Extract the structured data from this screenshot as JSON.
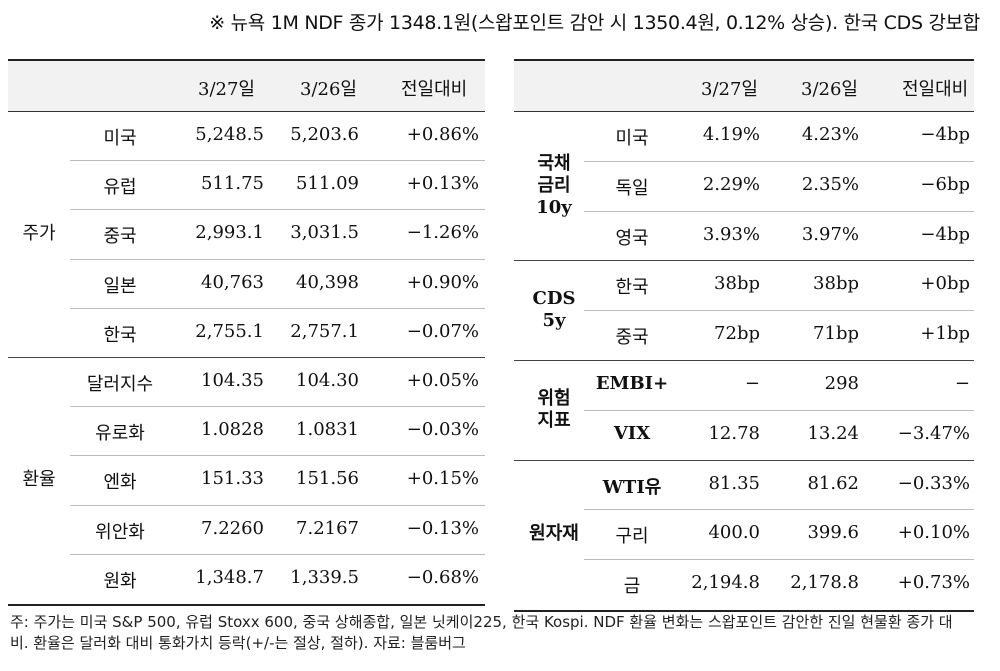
{
  "title": "※ 뉴욕 1M NDF 종가 1348.1원(스왑포인트 감안 시 1350.4원, 0.12% 상승). 한국 CDS 강보합",
  "left": {
    "headers": [
      "3/27일",
      "3/26일",
      "전일대비"
    ],
    "groups": [
      {
        "name": "주가",
        "rows": [
          {
            "label": "미국",
            "d1": "5,248.5",
            "d2": "5,203.6",
            "chg": "+0.86%"
          },
          {
            "label": "유럽",
            "d1": "511.75",
            "d2": "511.09",
            "chg": "+0.13%"
          },
          {
            "label": "중국",
            "d1": "2,993.1",
            "d2": "3,031.5",
            "chg": "−1.26%"
          },
          {
            "label": "일본",
            "d1": "40,763",
            "d2": "40,398",
            "chg": "+0.90%"
          },
          {
            "label": "한국",
            "d1": "2,755.1",
            "d2": "2,757.1",
            "chg": "−0.07%"
          }
        ]
      },
      {
        "name": "환율",
        "rows": [
          {
            "label": "달러지수",
            "d1": "104.35",
            "d2": "104.30",
            "chg": "+0.05%"
          },
          {
            "label": "유로화",
            "d1": "1.0828",
            "d2": "1.0831",
            "chg": "−0.03%"
          },
          {
            "label": "엔화",
            "d1": "151.33",
            "d2": "151.56",
            "chg": "+0.15%"
          },
          {
            "label": "위안화",
            "d1": "7.2260",
            "d2": "7.2167",
            "chg": "−0.13%"
          },
          {
            "label": "원화",
            "d1": "1,348.7",
            "d2": "1,339.5",
            "chg": "−0.68%"
          }
        ]
      }
    ]
  },
  "right": {
    "headers": [
      "3/27일",
      "3/26일",
      "전일대비"
    ],
    "groups": [
      {
        "name_lines": [
          "국채",
          "금리",
          "10y"
        ],
        "rows": [
          {
            "label": "미국",
            "d1": "4.19%",
            "d2": "4.23%",
            "chg": "−4bp"
          },
          {
            "label": "독일",
            "d1": "2.29%",
            "d2": "2.35%",
            "chg": "−6bp"
          },
          {
            "label": "영국",
            "d1": "3.93%",
            "d2": "3.97%",
            "chg": "−4bp"
          }
        ]
      },
      {
        "name_lines": [
          "CDS",
          "5y"
        ],
        "rows": [
          {
            "label": "한국",
            "d1": "38bp",
            "d2": "38bp",
            "chg": "+0bp"
          },
          {
            "label": "중국",
            "d1": "72bp",
            "d2": "71bp",
            "chg": "+1bp"
          }
        ]
      },
      {
        "name_lines": [
          "위험",
          "지표"
        ],
        "rows": [
          {
            "label": "EMBI+",
            "d1": "−",
            "d2": "298",
            "chg": "−"
          },
          {
            "label": "VIX",
            "d1": "12.78",
            "d2": "13.24",
            "chg": "−3.47%"
          }
        ]
      },
      {
        "name_lines": [
          "원자재"
        ],
        "rows": [
          {
            "label": "WTI유",
            "d1": "81.35",
            "d2": "81.62",
            "chg": "−0.33%"
          },
          {
            "label": "구리",
            "d1": "400.0",
            "d2": "399.6",
            "chg": "+0.10%"
          },
          {
            "label": "금",
            "d1": "2,194.8",
            "d2": "2,178.8",
            "chg": "+0.73%"
          }
        ]
      }
    ]
  },
  "footnote": "주: 주가는 미국 S&P 500, 유럽 Stoxx 600, 중국 상해종합, 일본 닛케이225, 한국 Kospi. NDF 환율 변화는 스왑포인트 감안한 진일 현물환 종가 대비. 환율은 달러화 대비 통화가치 등락(+/-는 절상, 절하). 자료: 블룸버그"
}
